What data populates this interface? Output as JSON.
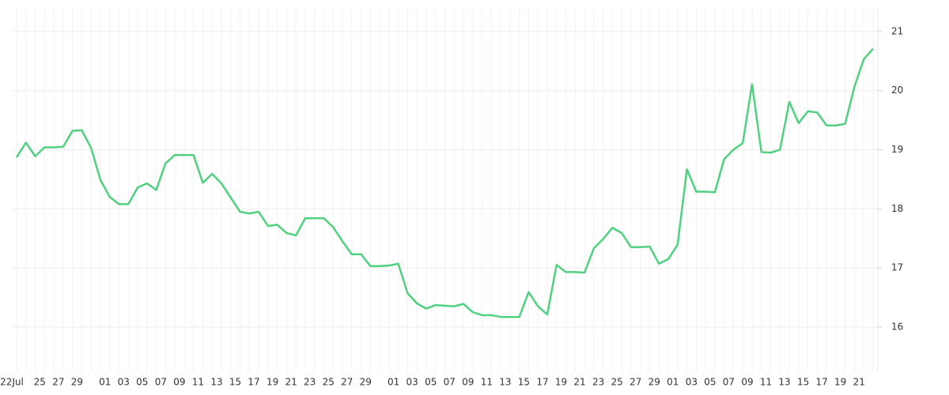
{
  "chart_data": {
    "type": "line",
    "categories": [
      "22Jul",
      null,
      null,
      "25",
      null,
      "27",
      null,
      "29",
      null,
      null,
      "01",
      null,
      "03",
      null,
      "05",
      null,
      "07",
      null,
      "09",
      null,
      "11",
      null,
      "13",
      null,
      "15",
      null,
      "17",
      null,
      "19",
      null,
      "21",
      null,
      "23",
      null,
      "25",
      null,
      "27",
      null,
      "29",
      null,
      null,
      "01",
      null,
      "03",
      null,
      "05",
      null,
      "07",
      null,
      "09",
      null,
      "11",
      null,
      "13",
      null,
      "15",
      null,
      "17",
      null,
      "19",
      null,
      "21",
      null,
      "23",
      null,
      "25",
      null,
      "27",
      null,
      "29",
      null,
      "01",
      null,
      "03",
      null,
      "05",
      null,
      "07",
      null,
      "09",
      null,
      "11",
      null,
      "13",
      null,
      "15",
      null,
      "17",
      null,
      "19",
      null,
      "21",
      null
    ],
    "values": [
      18.87,
      19.12,
      18.89,
      19.04,
      19.04,
      19.05,
      19.32,
      19.33,
      19.03,
      18.49,
      18.2,
      18.08,
      18.08,
      18.36,
      18.43,
      18.32,
      18.77,
      18.91,
      18.91,
      18.91,
      18.44,
      18.59,
      18.43,
      18.19,
      17.95,
      17.92,
      17.95,
      17.71,
      17.73,
      17.59,
      17.55,
      17.84,
      17.84,
      17.84,
      17.69,
      17.45,
      17.23,
      17.23,
      17.03,
      17.03,
      17.04,
      17.07,
      16.57,
      16.4,
      16.31,
      16.37,
      16.36,
      16.35,
      16.39,
      16.25,
      16.2,
      16.2,
      16.17,
      16.17,
      16.17,
      16.59,
      16.35,
      16.21,
      17.05,
      16.93,
      16.93,
      16.92,
      17.33,
      17.49,
      17.68,
      17.59,
      17.35,
      17.35,
      17.36,
      17.07,
      17.15,
      17.39,
      18.67,
      18.29,
      18.29,
      18.28,
      18.84,
      19.0,
      19.11,
      20.11,
      18.96,
      18.95,
      19.0,
      19.81,
      19.45,
      19.65,
      19.63,
      19.41,
      19.41,
      19.44,
      20.07,
      20.53,
      20.71
    ],
    "color": "#4fd17f",
    "ylim": [
      15.25,
      21.4
    ],
    "yticks": [
      16,
      17,
      18,
      19,
      20,
      21
    ],
    "grid": true
  }
}
